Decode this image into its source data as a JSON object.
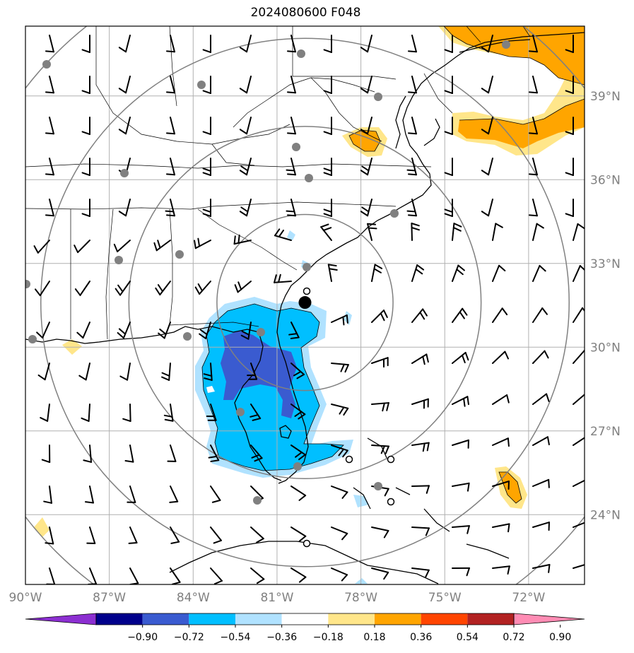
{
  "title": "2024080600 F048",
  "map": {
    "lon_range": [
      -90,
      -70
    ],
    "lat_range": [
      21.5,
      41.5
    ],
    "lat_ticks": [
      {
        "value": 24,
        "label": "24°N"
      },
      {
        "value": 27,
        "label": "27°N"
      },
      {
        "value": 30,
        "label": "30°N"
      },
      {
        "value": 33,
        "label": "33°N"
      },
      {
        "value": 36,
        "label": "36°N"
      },
      {
        "value": 39,
        "label": "39°N"
      }
    ],
    "lon_ticks": [
      {
        "value": -90,
        "label": "90°W"
      },
      {
        "value": -87,
        "label": "87°W"
      },
      {
        "value": -84,
        "label": "84°W"
      },
      {
        "value": -81,
        "label": "81°W"
      },
      {
        "value": -78,
        "label": "78°W"
      },
      {
        "value": -75,
        "label": "75°W"
      },
      {
        "value": -72,
        "label": "72°W"
      }
    ],
    "storm_center": {
      "lon": -80.0,
      "lat": 31.6
    },
    "range_ring_step_deg": 3.15,
    "range_ring_count": 4,
    "colors": {
      "strong_negative": "#3a5bd0",
      "negative": "#00bfff",
      "weak_negative": "#b0e2ff",
      "weak_positive": "#ffe68a",
      "positive": "#ffa500",
      "gridline": "#b0b0b0",
      "ring": "#808080",
      "station": "#808080"
    }
  },
  "colorbar": {
    "colors": [
      "#8c2fd1",
      "#00008b",
      "#3a5bd0",
      "#00bfff",
      "#b0e2ff",
      "#ffffff",
      "#ffe68a",
      "#ffa500",
      "#ff4500",
      "#b22222",
      "#ff8cb4"
    ],
    "labels": [
      "−0.90",
      "−0.72",
      "−0.54",
      "−0.36",
      "−0.18",
      "0.18",
      "0.36",
      "0.54",
      "0.72",
      "0.90"
    ]
  }
}
